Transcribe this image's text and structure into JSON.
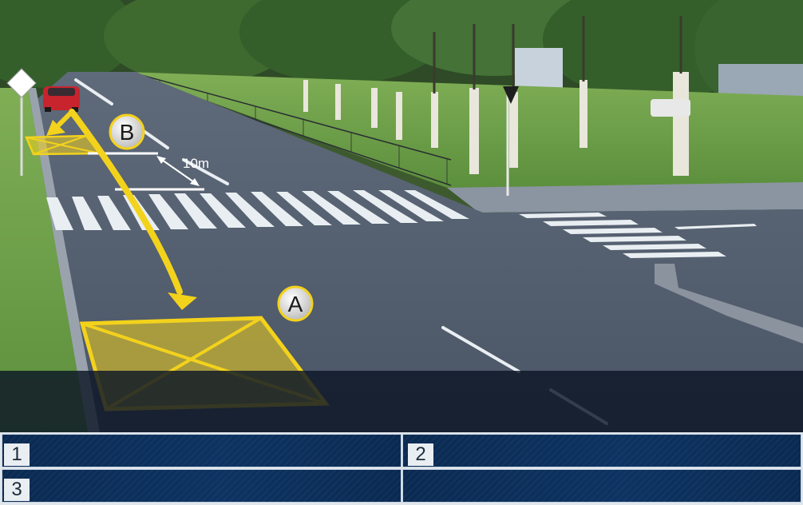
{
  "scene": {
    "marker_a_label": "A",
    "marker_b_label": "B",
    "distance_label": "10m",
    "accent_color": "#f3d21c"
  },
  "answers": [
    {
      "number": "1",
      "text": ""
    },
    {
      "number": "2",
      "text": ""
    },
    {
      "number": "3",
      "text": ""
    },
    {
      "number": "",
      "text": ""
    }
  ]
}
